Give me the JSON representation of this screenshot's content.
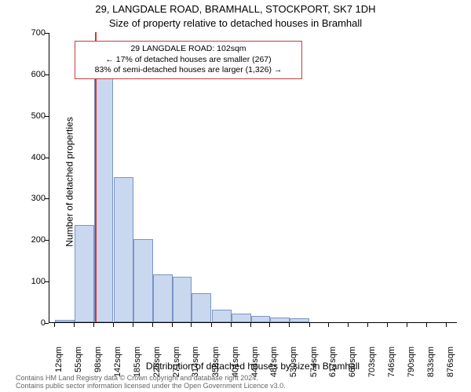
{
  "title_line1": "29, LANGDALE ROAD, BRAMHALL, STOCKPORT, SK7 1DH",
  "title_line2": "Size of property relative to detached houses in Bramhall",
  "ylabel": "Number of detached properties",
  "xlabel": "Distribution of detached houses by size in Bramhall",
  "chart": {
    "type": "histogram",
    "background_color": "#ffffff",
    "bar_fill": "#c9d8ef",
    "bar_border": "#7a94c5",
    "bar_border_width": 1,
    "marker_color": "#e03030",
    "marker_x": 102,
    "ylim": [
      0,
      700
    ],
    "ytick_step": 100,
    "xticks": [
      12,
      55,
      98,
      142,
      185,
      228,
      271,
      314,
      358,
      401,
      444,
      487,
      530,
      574,
      617,
      660,
      703,
      746,
      790,
      833,
      876
    ],
    "xtick_suffix": "sqm",
    "x_range": [
      0,
      900
    ],
    "bin_width": 43,
    "bins": [
      {
        "start": 12,
        "count": 5
      },
      {
        "start": 55,
        "count": 235
      },
      {
        "start": 98,
        "count": 620
      },
      {
        "start": 142,
        "count": 350
      },
      {
        "start": 185,
        "count": 200
      },
      {
        "start": 228,
        "count": 115
      },
      {
        "start": 271,
        "count": 110
      },
      {
        "start": 314,
        "count": 70
      },
      {
        "start": 358,
        "count": 30
      },
      {
        "start": 401,
        "count": 20
      },
      {
        "start": 444,
        "count": 15
      },
      {
        "start": 487,
        "count": 12
      },
      {
        "start": 530,
        "count": 10
      },
      {
        "start": 574,
        "count": 0
      },
      {
        "start": 617,
        "count": 0
      },
      {
        "start": 660,
        "count": 0
      },
      {
        "start": 703,
        "count": 0
      },
      {
        "start": 746,
        "count": 0
      },
      {
        "start": 790,
        "count": 0
      },
      {
        "start": 833,
        "count": 0
      }
    ]
  },
  "annotation": {
    "line1": "29 LANGDALE ROAD: 102sqm",
    "line2": "← 17% of detached houses are smaller (267)",
    "line3": "83% of semi-detached houses are larger (1,326) →",
    "border_color": "#c04040",
    "text_color": "#000000"
  },
  "footer_line1": "Contains HM Land Registry data © Crown copyright and database right 2024.",
  "footer_line2": "Contains public sector information licensed under the Open Government Licence v3.0."
}
